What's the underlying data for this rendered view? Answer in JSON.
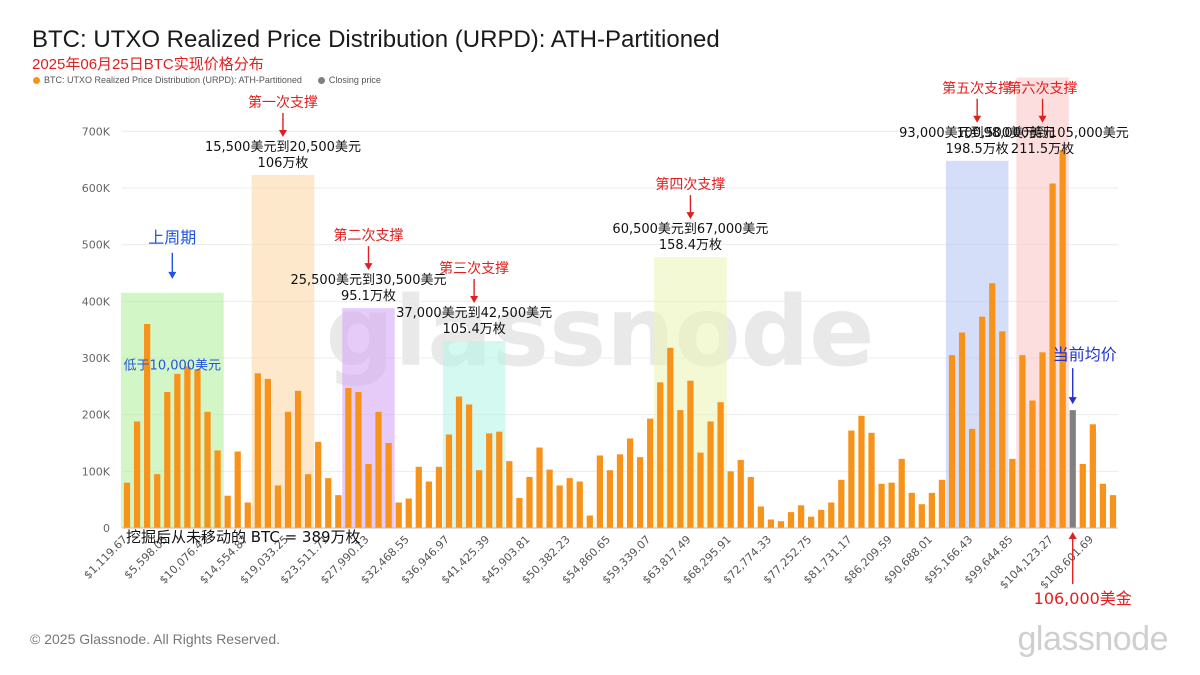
{
  "title": "BTC: UTXO Realized Price Distribution (URPD): ATH-Partitioned",
  "subtitle": "2025年06月25日BTC实现价格分布",
  "legend": [
    {
      "label": "BTC: UTXO Realized Price Distribution (URPD): ATH-Partitioned",
      "color": "#f7931a"
    },
    {
      "label": "Closing price",
      "color": "#808080"
    }
  ],
  "footer": "© 2025 Glassnode. All Rights Reserved.",
  "wordmark": "glassnode",
  "watermark": "glassnode",
  "chart_data": {
    "type": "bar",
    "title": "BTC: UTXO Realized Price Distribution (URPD): ATH-Partitioned",
    "ylim": [
      0,
      750000
    ],
    "yticks": [
      0,
      100000,
      200000,
      300000,
      400000,
      500000,
      600000,
      700000
    ],
    "ytick_labels": [
      "0",
      "100K",
      "200K",
      "300K",
      "400K",
      "500K",
      "600K",
      "700K"
    ],
    "grid": true,
    "legend_position": "top-left",
    "xtick_labels": [
      "$1,119.67",
      "$5,598.05",
      "$10,076.43",
      "$14,554.87",
      "$19,033.25",
      "$23,511.71",
      "$27,990.13",
      "$32,468.55",
      "$36,946.97",
      "$41,425.39",
      "$45,903.81",
      "$50,382.23",
      "$54,860.65",
      "$59,339.07",
      "$63,817.49",
      "$68,295.91",
      "$72,774.33",
      "$77,252.75",
      "$81,731.17",
      "$86,209.59",
      "$90,688.01",
      "$95,166.43",
      "$99,644.85",
      "$104,123.27",
      "$108,601.69"
    ],
    "series": [
      {
        "name": "BTC: UTXO Realized Price Distribution (URPD): ATH-Partitioned",
        "color": "#f7931a",
        "values": [
          80000,
          188000,
          360000,
          95000,
          240000,
          272000,
          285000,
          280000,
          205000,
          137000,
          57000,
          135000,
          45000,
          273000,
          263000,
          75000,
          205000,
          242000,
          95000,
          152000,
          88000,
          58000,
          247000,
          240000,
          113000,
          205000,
          150000,
          45000,
          52000,
          108000,
          82000,
          108000,
          165000,
          232000,
          218000,
          102000,
          167000,
          170000,
          118000,
          53000,
          90000,
          142000,
          103000,
          75000,
          88000,
          82000,
          22000,
          128000,
          102000,
          130000,
          158000,
          125000,
          193000,
          257000,
          318000,
          208000,
          260000,
          133000,
          188000,
          222000,
          100000,
          120000,
          90000,
          38000,
          15000,
          12000,
          28000,
          40000,
          20000,
          32000,
          45000,
          85000,
          172000,
          198000,
          168000,
          78000,
          80000,
          122000,
          62000,
          42000,
          62000,
          85000,
          305000,
          345000,
          175000,
          373000,
          432000,
          347000,
          122000,
          305000,
          225000,
          310000,
          608000,
          667000,
          0,
          113000,
          183000,
          78000,
          58000
        ]
      },
      {
        "name": "Closing price",
        "color": "#808080",
        "values": [
          0,
          0,
          0,
          0,
          0,
          0,
          0,
          0,
          0,
          0,
          0,
          0,
          0,
          0,
          0,
          0,
          0,
          0,
          0,
          0,
          0,
          0,
          0,
          0,
          0,
          0,
          0,
          0,
          0,
          0,
          0,
          0,
          0,
          0,
          0,
          0,
          0,
          0,
          0,
          0,
          0,
          0,
          0,
          0,
          0,
          0,
          0,
          0,
          0,
          0,
          0,
          0,
          0,
          0,
          0,
          0,
          0,
          0,
          0,
          0,
          0,
          0,
          0,
          0,
          0,
          0,
          0,
          0,
          0,
          0,
          0,
          0,
          0,
          0,
          0,
          0,
          0,
          0,
          0,
          0,
          0,
          0,
          0,
          0,
          0,
          0,
          0,
          0,
          0,
          0,
          0,
          0,
          0,
          0,
          208000,
          0,
          0,
          0,
          0
        ]
      }
    ],
    "zones": [
      {
        "from_bar": 0,
        "to_bar": 9,
        "color": "#b5f0a0",
        "top": 415000,
        "label": "低于10,000美元",
        "label_color": "#2255dd",
        "header": "上周期",
        "header_color": "#2255dd"
      },
      {
        "from_bar": 13,
        "to_bar": 18,
        "color": "#fcd9a8",
        "top": 623000,
        "label": "15,500美元到20,500美元",
        "label2": "106万枚",
        "label_color": "#111111",
        "header": "第一次支撑",
        "header_color": "#e02020"
      },
      {
        "from_bar": 22,
        "to_bar": 26,
        "color": "#d6a8f5",
        "top": 388000,
        "label": "25,500美元到30,500美元",
        "label2": "95.1万枚",
        "label_color": "#111111",
        "header": "第二次支撑",
        "header_color": "#e02020"
      },
      {
        "from_bar": 32,
        "to_bar": 37,
        "color": "#b8f5e8",
        "top": 330000,
        "label": "37,000美元到42,500美元",
        "label2": "105.4万枚",
        "label_color": "#111111",
        "header": "第三次支撑",
        "header_color": "#e02020"
      },
      {
        "from_bar": 53,
        "to_bar": 59,
        "color": "#eaf5b8",
        "top": 478000,
        "label": "60,500美元到67,000美元",
        "label2": "158.4万枚",
        "label_color": "#111111",
        "header": "第四次支撑",
        "header_color": "#e02020"
      },
      {
        "from_bar": 82,
        "to_bar": 87,
        "color": "#b8c8f5",
        "top": 648000,
        "label": "93,000美元到98,000美元",
        "label2": "198.5万枚",
        "label_color": "#111111",
        "header": "第五次支撑",
        "header_color": "#e02020"
      },
      {
        "from_bar": 89,
        "to_bar": 93,
        "color": "#fcc8c8",
        "top": 795000,
        "label": "100,500美元到105,000美元",
        "label2": "211.5万枚",
        "label_color": "#111111",
        "header": "第六次支撑",
        "header_color": "#e02020"
      }
    ],
    "annotations": [
      {
        "text": "挖掘后从未移动的 BTC = 389万枚",
        "color": "#111111"
      },
      {
        "text": "当前均价",
        "color": "#2233cc"
      },
      {
        "text": "106,000美金",
        "color": "#e02020"
      }
    ]
  }
}
